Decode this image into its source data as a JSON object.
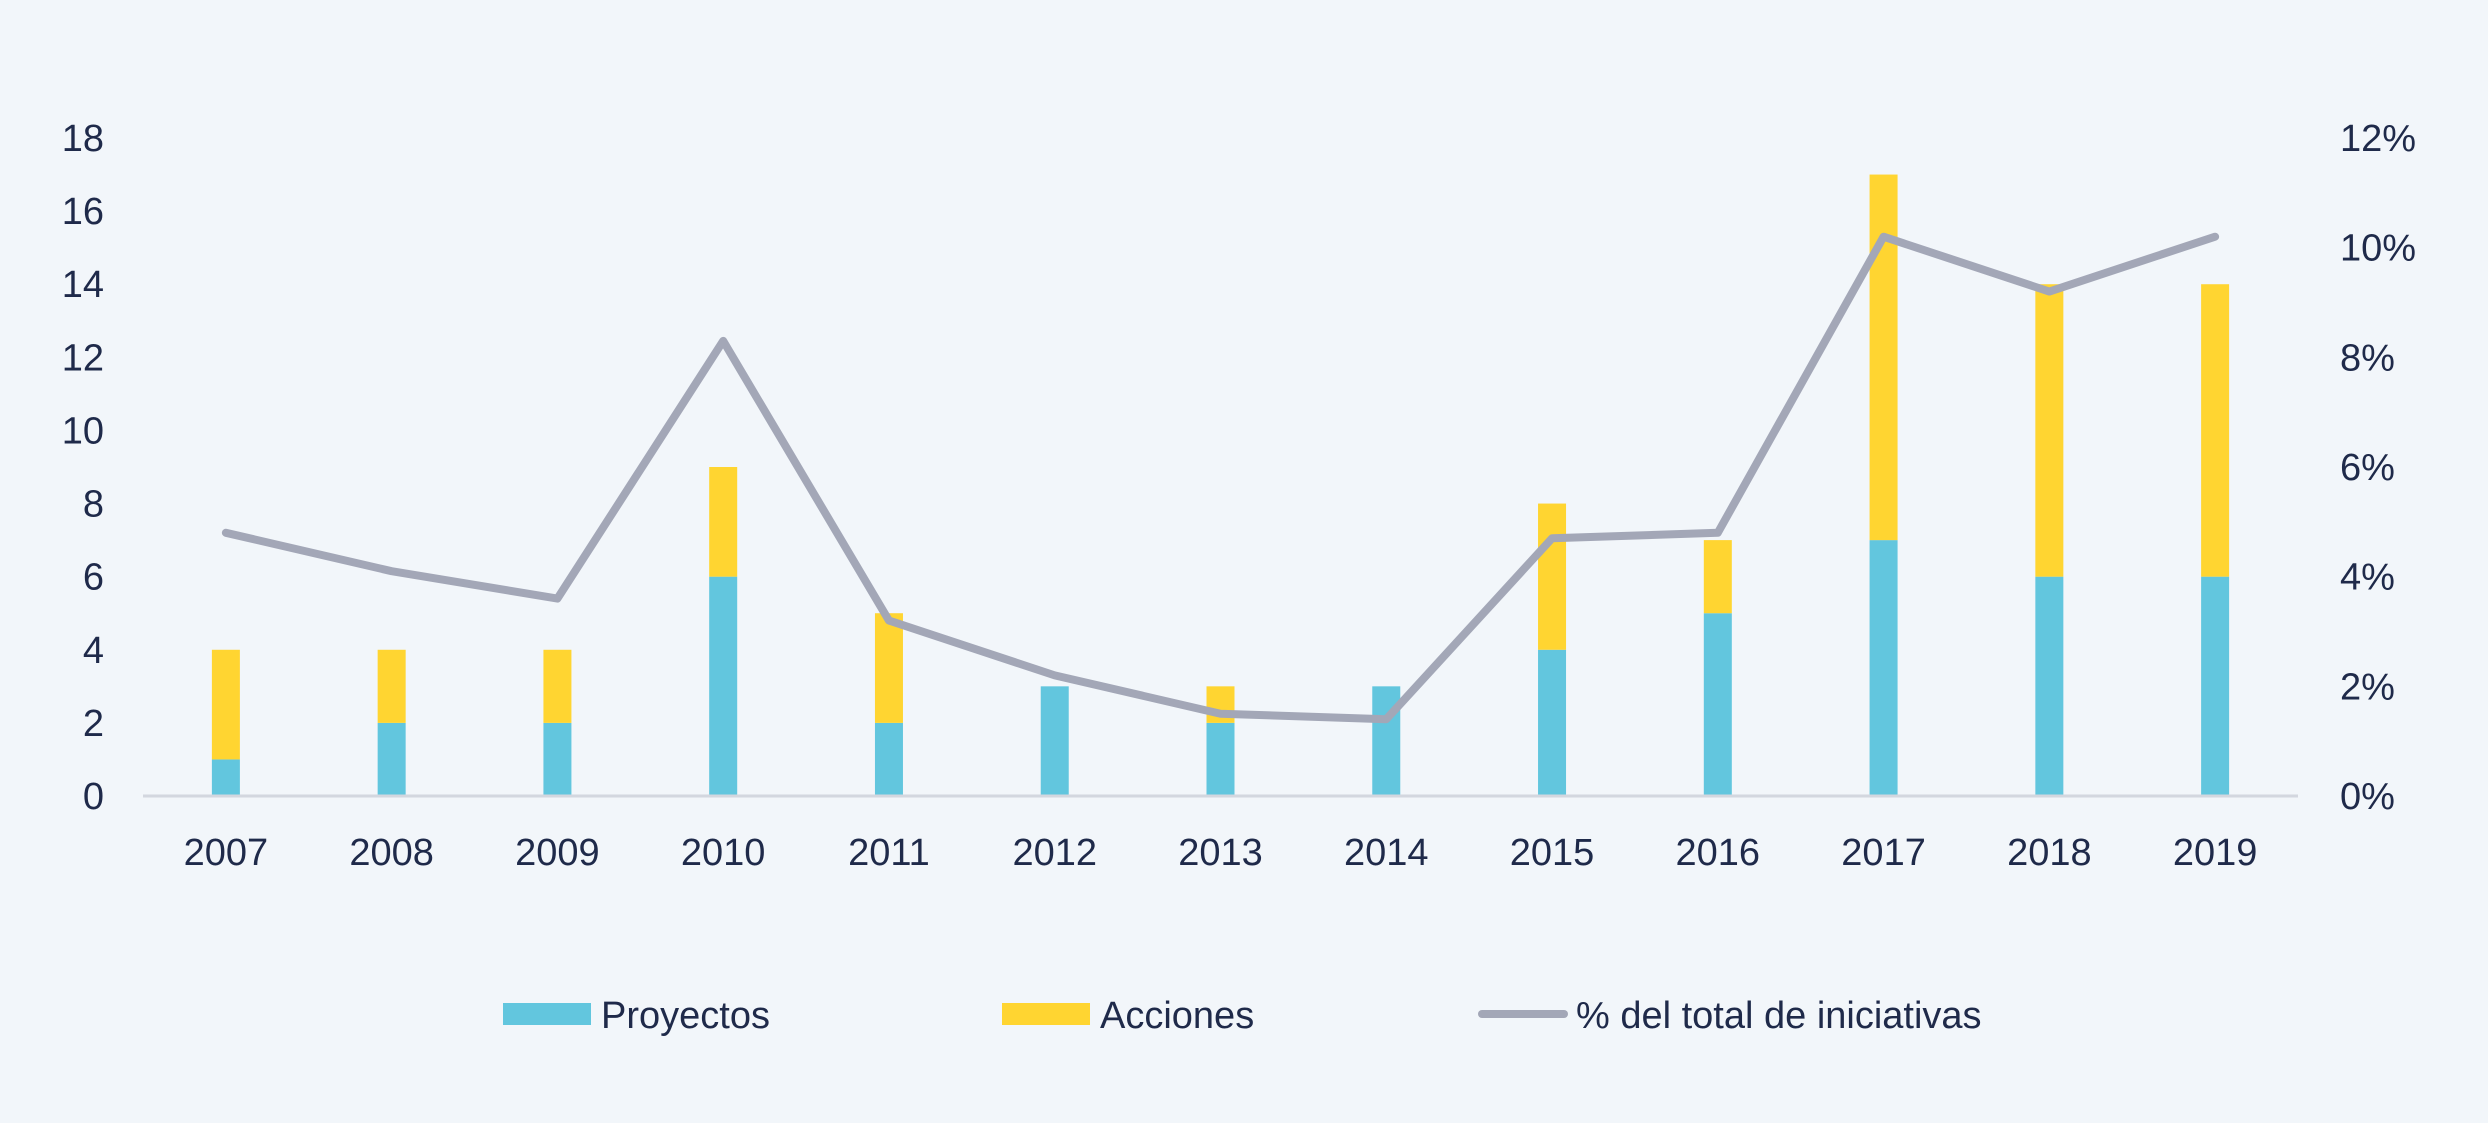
{
  "chart_data": {
    "type": "bar",
    "stacked": true,
    "categories": [
      "2007",
      "2008",
      "2009",
      "2010",
      "2011",
      "2012",
      "2013",
      "2014",
      "2015",
      "2016",
      "2017",
      "2018",
      "2019"
    ],
    "series": [
      {
        "name": "Proyectos",
        "kind": "bar",
        "axis": "left",
        "color": "#62c6de",
        "values": [
          1,
          2,
          2,
          6,
          2,
          3,
          2,
          3,
          4,
          5,
          7,
          6,
          6
        ]
      },
      {
        "name": "Acciones",
        "kind": "bar",
        "axis": "left",
        "color": "#ffd531",
        "values": [
          3,
          2,
          2,
          3,
          3,
          0,
          1,
          0,
          4,
          2,
          10,
          8,
          8
        ]
      },
      {
        "name": "% del total de iniciativas",
        "kind": "line",
        "axis": "right",
        "color": "#a3a7b7",
        "values": [
          4.8,
          4.1,
          3.6,
          8.3,
          3.2,
          2.2,
          1.5,
          1.4,
          4.7,
          4.8,
          10.2,
          9.2,
          10.2
        ]
      }
    ],
    "y_left": {
      "min": 0,
      "max": 18,
      "ticks": [
        "0",
        "2",
        "4",
        "6",
        "8",
        "10",
        "12",
        "14",
        "16",
        "18"
      ]
    },
    "y_right": {
      "min": 0,
      "max": 12,
      "ticks": [
        "0%",
        "2%",
        "4%",
        "6%",
        "8%",
        "10%",
        "12%"
      ]
    },
    "legend_position": "bottom",
    "grid": false
  }
}
